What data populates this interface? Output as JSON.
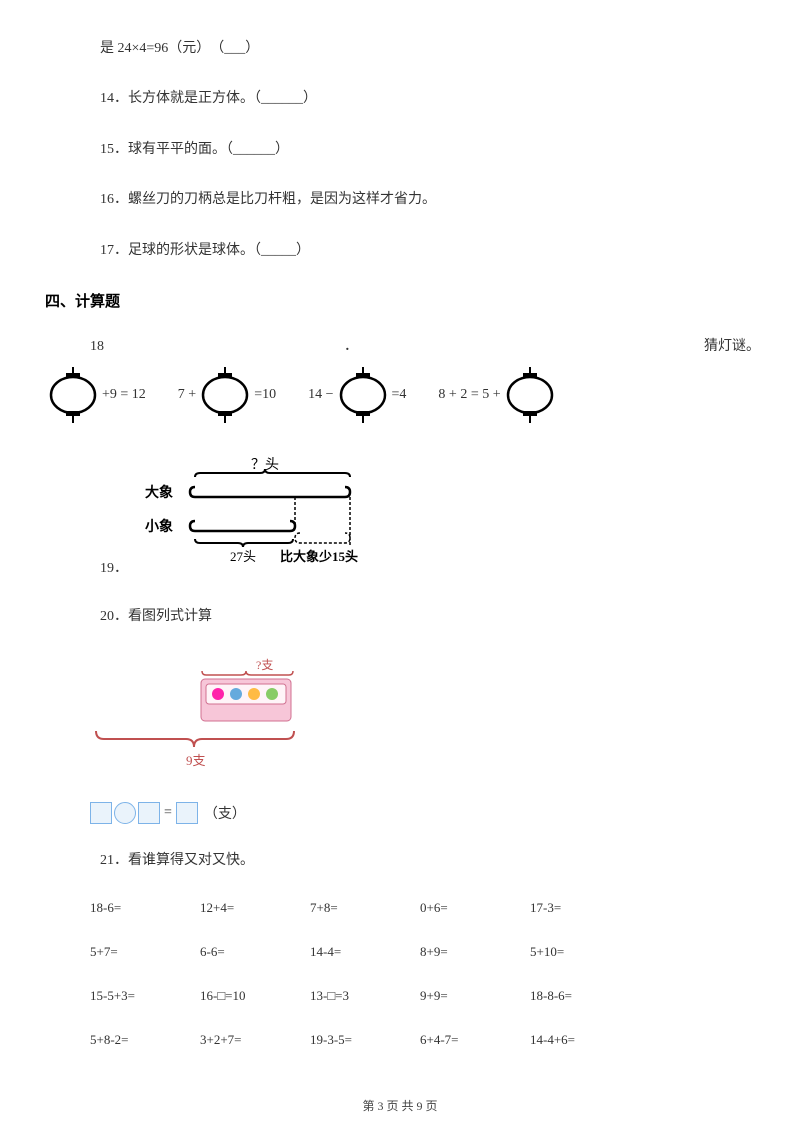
{
  "colors": {
    "text": "#333333",
    "background": "#ffffff",
    "box_border": "#7db3e8",
    "box_fill": "#eaf3fb",
    "footer": "#444444"
  },
  "q13_cont": "是 24×4=96（元）　（___）",
  "q14": "14．长方体就是正方体。（______）",
  "q15": "15．球有平平的面。（______）",
  "q16": "16．螺丝刀的刀柄总是比刀杆粗，是因为这样才省力。",
  "q17": "17．足球的形状是球体。（_____）",
  "section4": "四、计算题",
  "q18_num": "18",
  "q18_dot": "．",
  "q18_tail": "猜灯谜。",
  "lantern_eqs": {
    "eq1_suffix": "+9 = 12",
    "eq2_prefix": "7 +",
    "eq2_suffix": "=10",
    "eq3_prefix": "14 −",
    "eq3_suffix": "=4",
    "eq4_prefix": "8 + 2 = 5 +"
  },
  "elephant": {
    "top_label": "？头",
    "big_label": "大象",
    "small_label": "小象",
    "bottom_left": "27头",
    "bottom_right": "比大象少15头"
  },
  "q19": "19．",
  "q20": "20．看图列式计算",
  "pencil": {
    "top_label": "?支",
    "bottom_label": "9支"
  },
  "box_eq_suffix": "（支）",
  "q21": "21．看谁算得又对又快。",
  "calc_rows": [
    [
      "18-6=",
      "12+4=",
      "7+8=",
      "0+6=",
      "17-3="
    ],
    [
      "5+7=",
      "6-6=",
      "14-4=",
      "8+9=",
      "5+10="
    ],
    [
      "15-5+3=",
      "16-□=10",
      "13-□=3",
      "9+9=",
      "18-8-6="
    ],
    [
      "5+8-2=",
      "3+2+7=",
      "19-3-5=",
      "6+4-7=",
      "14-4+6="
    ]
  ],
  "footer": "第 3 页 共 9 页"
}
